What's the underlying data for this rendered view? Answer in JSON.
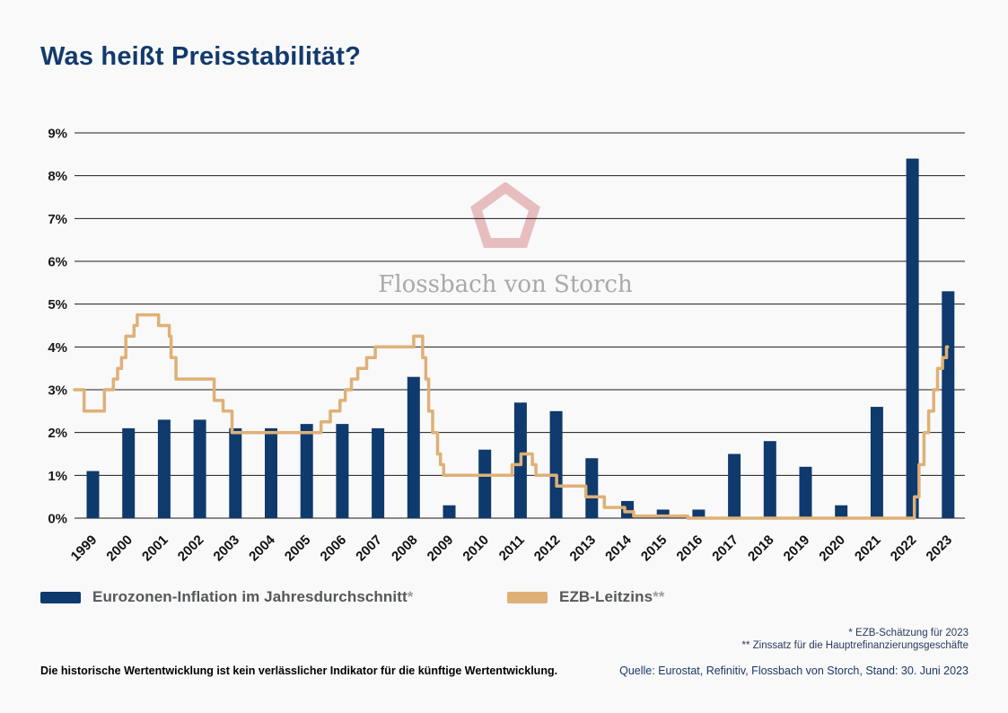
{
  "page": {
    "title": "Was heißt Preisstabilität?",
    "background": "#f9f9f9",
    "title_color": "#123a6d"
  },
  "watermark": {
    "brand": "Flossbach von Storch",
    "logo_color": "#d9888d",
    "text_color": "#a9a9a9"
  },
  "chart_data": {
    "type": "bar",
    "title": "Was heißt Preisstabilität?",
    "categories": [
      "1999",
      "2000",
      "2001",
      "2002",
      "2003",
      "2004",
      "2005",
      "2006",
      "2007",
      "2008",
      "2009",
      "2010",
      "2011",
      "2012",
      "2013",
      "2014",
      "2015",
      "2016",
      "2017",
      "2018",
      "2019",
      "2020",
      "2021",
      "2022",
      "2023"
    ],
    "series": [
      {
        "name": "Eurozonen-Inflation im Jahresdurchschnitt*",
        "type": "bar",
        "color": "#0f3a6d",
        "values": [
          1.1,
          2.1,
          2.3,
          2.3,
          2.1,
          2.1,
          2.2,
          2.2,
          2.1,
          3.3,
          0.3,
          1.6,
          2.7,
          2.5,
          1.4,
          0.4,
          0.2,
          0.2,
          1.5,
          1.8,
          1.2,
          0.3,
          2.6,
          8.4,
          5.3
        ]
      },
      {
        "name": "EZB-Leitzins**",
        "type": "step-line",
        "color": "#dfb076",
        "points": [
          [
            1999.0,
            3.0
          ],
          [
            1999.27,
            2.5
          ],
          [
            1999.84,
            3.0
          ],
          [
            2000.09,
            3.25
          ],
          [
            2000.21,
            3.5
          ],
          [
            2000.32,
            3.75
          ],
          [
            2000.44,
            4.25
          ],
          [
            2000.67,
            4.5
          ],
          [
            2000.76,
            4.75
          ],
          [
            2001.36,
            4.5
          ],
          [
            2001.66,
            4.25
          ],
          [
            2001.71,
            3.75
          ],
          [
            2001.85,
            3.25
          ],
          [
            2002.92,
            2.75
          ],
          [
            2003.17,
            2.5
          ],
          [
            2003.42,
            2.0
          ],
          [
            2005.92,
            2.25
          ],
          [
            2006.18,
            2.5
          ],
          [
            2006.45,
            2.75
          ],
          [
            2006.6,
            3.0
          ],
          [
            2006.77,
            3.25
          ],
          [
            2006.95,
            3.5
          ],
          [
            2007.2,
            3.75
          ],
          [
            2007.44,
            4.0
          ],
          [
            2008.52,
            4.25
          ],
          [
            2008.77,
            3.75
          ],
          [
            2008.86,
            3.25
          ],
          [
            2008.94,
            2.5
          ],
          [
            2009.05,
            2.0
          ],
          [
            2009.19,
            1.5
          ],
          [
            2009.27,
            1.25
          ],
          [
            2009.36,
            1.0
          ],
          [
            2011.28,
            1.25
          ],
          [
            2011.53,
            1.5
          ],
          [
            2011.85,
            1.25
          ],
          [
            2011.95,
            1.0
          ],
          [
            2012.53,
            0.75
          ],
          [
            2013.35,
            0.5
          ],
          [
            2013.87,
            0.25
          ],
          [
            2014.44,
            0.15
          ],
          [
            2014.69,
            0.05
          ],
          [
            2016.21,
            0.0
          ],
          [
            2022.57,
            0.5
          ],
          [
            2022.7,
            1.25
          ],
          [
            2022.84,
            2.0
          ],
          [
            2022.97,
            2.5
          ],
          [
            2023.11,
            3.0
          ],
          [
            2023.22,
            3.5
          ],
          [
            2023.36,
            3.75
          ],
          [
            2023.47,
            4.0
          ],
          [
            2023.5,
            4.0
          ]
        ]
      }
    ],
    "xlabel": "",
    "ylabel": "",
    "ylim": [
      0,
      9
    ],
    "yticks": [
      0,
      1,
      2,
      3,
      4,
      5,
      6,
      7,
      8,
      9
    ],
    "ytick_suffix": "%",
    "grid": true,
    "legend_position": "bottom"
  },
  "legend": {
    "items": [
      {
        "label": "Eurozonen-Inflation im Jahresdurchschnitt",
        "suffix": "*",
        "color": "#0f3a6d"
      },
      {
        "label": "EZB-Leitzins",
        "suffix": "**",
        "color": "#dfb076"
      }
    ]
  },
  "footnotes": {
    "line1": "* EZB-Schätzung für 2023",
    "line2": "** Zinssatz für die Hauptrefinanzierungsgeschäfte"
  },
  "disclaimer": "Die historische Wertentwicklung ist kein verlässlicher Indikator für die künftige Wertentwicklung.",
  "source": "Quelle: Eurostat, Refinitiv, Flossbach von Storch, Stand: 30. Juni 2023"
}
